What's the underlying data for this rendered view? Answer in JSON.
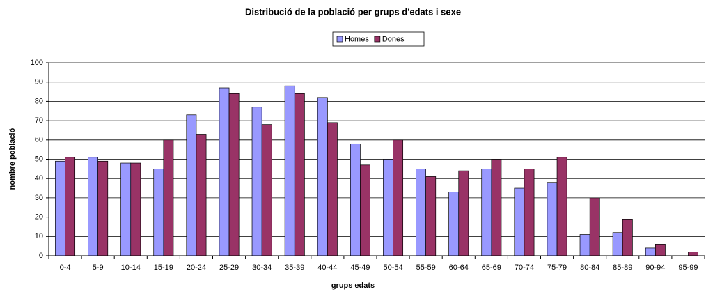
{
  "chart_data": {
    "type": "bar",
    "title": "Distribució de la població per grups d'edats i sexe",
    "x_label": "grups edats",
    "y_label": "nombre població",
    "categories": [
      "0-4",
      "5-9",
      "10-14",
      "15-19",
      "20-24",
      "25-29",
      "30-34",
      "35-39",
      "40-44",
      "45-49",
      "50-54",
      "55-59",
      "60-64",
      "65-69",
      "70-74",
      "75-79",
      "80-84",
      "85-89",
      "90-94",
      "95-99"
    ],
    "series": [
      {
        "name": "Homes",
        "color": "#9999ff",
        "values": [
          49,
          51,
          48,
          45,
          73,
          87,
          77,
          88,
          82,
          58,
          50,
          45,
          33,
          45,
          35,
          38,
          11,
          12,
          4,
          0
        ]
      },
      {
        "name": "Dones",
        "color": "#993366",
        "values": [
          51,
          49,
          48,
          60,
          63,
          84,
          68,
          84,
          69,
          47,
          60,
          41,
          44,
          50,
          45,
          51,
          30,
          19,
          6,
          2
        ]
      }
    ],
    "ylim": [
      0,
      100
    ],
    "yticks": [
      0,
      10,
      20,
      30,
      40,
      50,
      60,
      70,
      80,
      90,
      100
    ],
    "grid": true,
    "legend": "top"
  }
}
